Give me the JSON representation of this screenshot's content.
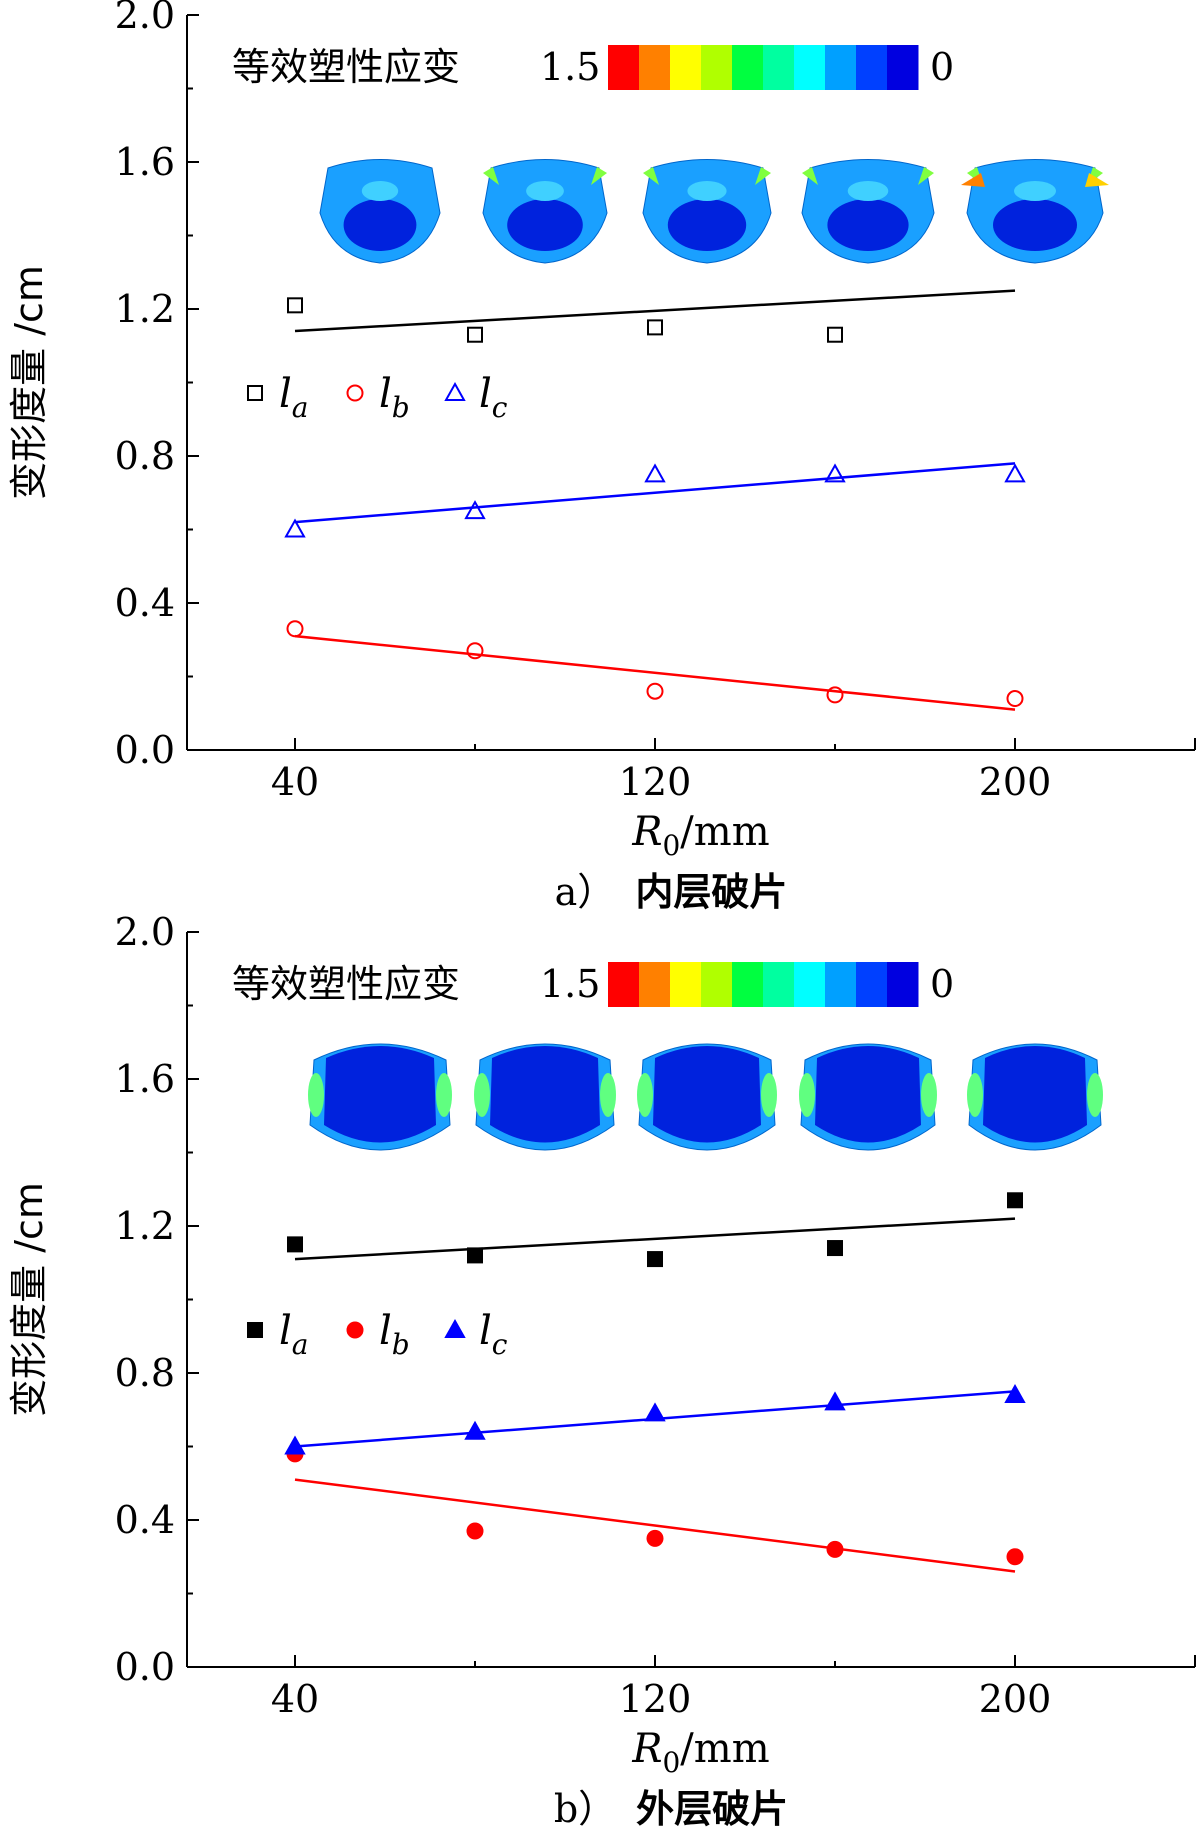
{
  "chart_data": [
    {
      "type": "scatter",
      "panel_id": "a",
      "caption_label": "a）",
      "caption_text": "内层破片",
      "xlabel_symbol": "R",
      "xlabel_sub": "0",
      "xlabel_unit": "/mm",
      "ylabel": "变形度量 /cm",
      "xlim": [
        16,
        240
      ],
      "ylim": [
        0.0,
        2.0
      ],
      "xticks": [
        40,
        120,
        200
      ],
      "yticks": [
        0.0,
        0.4,
        0.8,
        1.2,
        1.6,
        2.0
      ],
      "ytick_labels": [
        "0.0",
        "0.4",
        "0.8",
        "1.2",
        "1.6",
        "2.0"
      ],
      "colorbar": {
        "title": "等效塑性应变",
        "max_label": "1.5",
        "min_label": "0",
        "colors": [
          "#ff0000",
          "#ff8000",
          "#ffff00",
          "#b0ff00",
          "#00ff40",
          "#00ffa0",
          "#00ffff",
          "#00a0ff",
          "#0040ff",
          "#0000e0"
        ]
      },
      "marker_fill": "open",
      "series": [
        {
          "name": "l",
          "sub": "a",
          "marker": "square",
          "color": "#000000",
          "x": [
            40,
            80,
            120,
            160,
            200
          ],
          "y": [
            1.21,
            1.13,
            1.15,
            1.13,
            null
          ],
          "fit": {
            "x": [
              40,
              200
            ],
            "y": [
              1.14,
              1.25
            ]
          }
        },
        {
          "name": "l",
          "sub": "b",
          "marker": "circle",
          "color": "#ff0000",
          "x": [
            40,
            80,
            120,
            160,
            200
          ],
          "y": [
            0.33,
            0.27,
            0.16,
            0.15,
            0.14
          ],
          "fit": {
            "x": [
              40,
              200
            ],
            "y": [
              0.31,
              0.11
            ]
          }
        },
        {
          "name": "l",
          "sub": "c",
          "marker": "triangle",
          "color": "#0000ff",
          "x": [
            40,
            80,
            120,
            160,
            200
          ],
          "y": [
            0.6,
            0.65,
            0.75,
            0.75,
            0.75
          ],
          "fit": {
            "x": [
              40,
              200
            ],
            "y": [
              0.62,
              0.78
            ]
          }
        }
      ]
    },
    {
      "type": "scatter",
      "panel_id": "b",
      "caption_label": "b）",
      "caption_text": "外层破片",
      "xlabel_symbol": "R",
      "xlabel_sub": "0",
      "xlabel_unit": "/mm",
      "ylabel": "变形度量 /cm",
      "xlim": [
        16,
        240
      ],
      "ylim": [
        0.0,
        2.0
      ],
      "xticks": [
        40,
        120,
        200
      ],
      "yticks": [
        0.0,
        0.4,
        0.8,
        1.2,
        1.6,
        2.0
      ],
      "ytick_labels": [
        "0.0",
        "0.4",
        "0.8",
        "1.2",
        "1.6",
        "2.0"
      ],
      "colorbar": {
        "title": "等效塑性应变",
        "max_label": "1.5",
        "min_label": "0",
        "colors": [
          "#ff0000",
          "#ff8000",
          "#ffff00",
          "#b0ff00",
          "#00ff40",
          "#00ffa0",
          "#00ffff",
          "#00a0ff",
          "#0040ff",
          "#0000e0"
        ]
      },
      "marker_fill": "filled",
      "series": [
        {
          "name": "l",
          "sub": "a",
          "marker": "square",
          "color": "#000000",
          "x": [
            40,
            80,
            120,
            160,
            200
          ],
          "y": [
            1.15,
            1.12,
            1.11,
            1.14,
            1.27
          ],
          "fit": {
            "x": [
              40,
              200
            ],
            "y": [
              1.11,
              1.22
            ]
          }
        },
        {
          "name": "l",
          "sub": "b",
          "marker": "circle",
          "color": "#ff0000",
          "x": [
            40,
            80,
            120,
            160,
            200
          ],
          "y": [
            0.58,
            0.37,
            0.35,
            0.32,
            0.3
          ],
          "fit": {
            "x": [
              40,
              200
            ],
            "y": [
              0.51,
              0.26
            ]
          }
        },
        {
          "name": "l",
          "sub": "c",
          "marker": "triangle",
          "color": "#0000ff",
          "x": [
            40,
            80,
            120,
            160,
            200
          ],
          "y": [
            0.6,
            0.64,
            0.69,
            0.72,
            0.74
          ],
          "fit": {
            "x": [
              40,
              200
            ],
            "y": [
              0.6,
              0.75
            ]
          }
        }
      ]
    }
  ],
  "fragment_contours": {
    "panel_a": [
      "fragment-40",
      "fragment-80",
      "fragment-120",
      "fragment-160",
      "fragment-200"
    ],
    "panel_b": [
      "fragment-40",
      "fragment-80",
      "fragment-120",
      "fragment-160",
      "fragment-200"
    ]
  }
}
